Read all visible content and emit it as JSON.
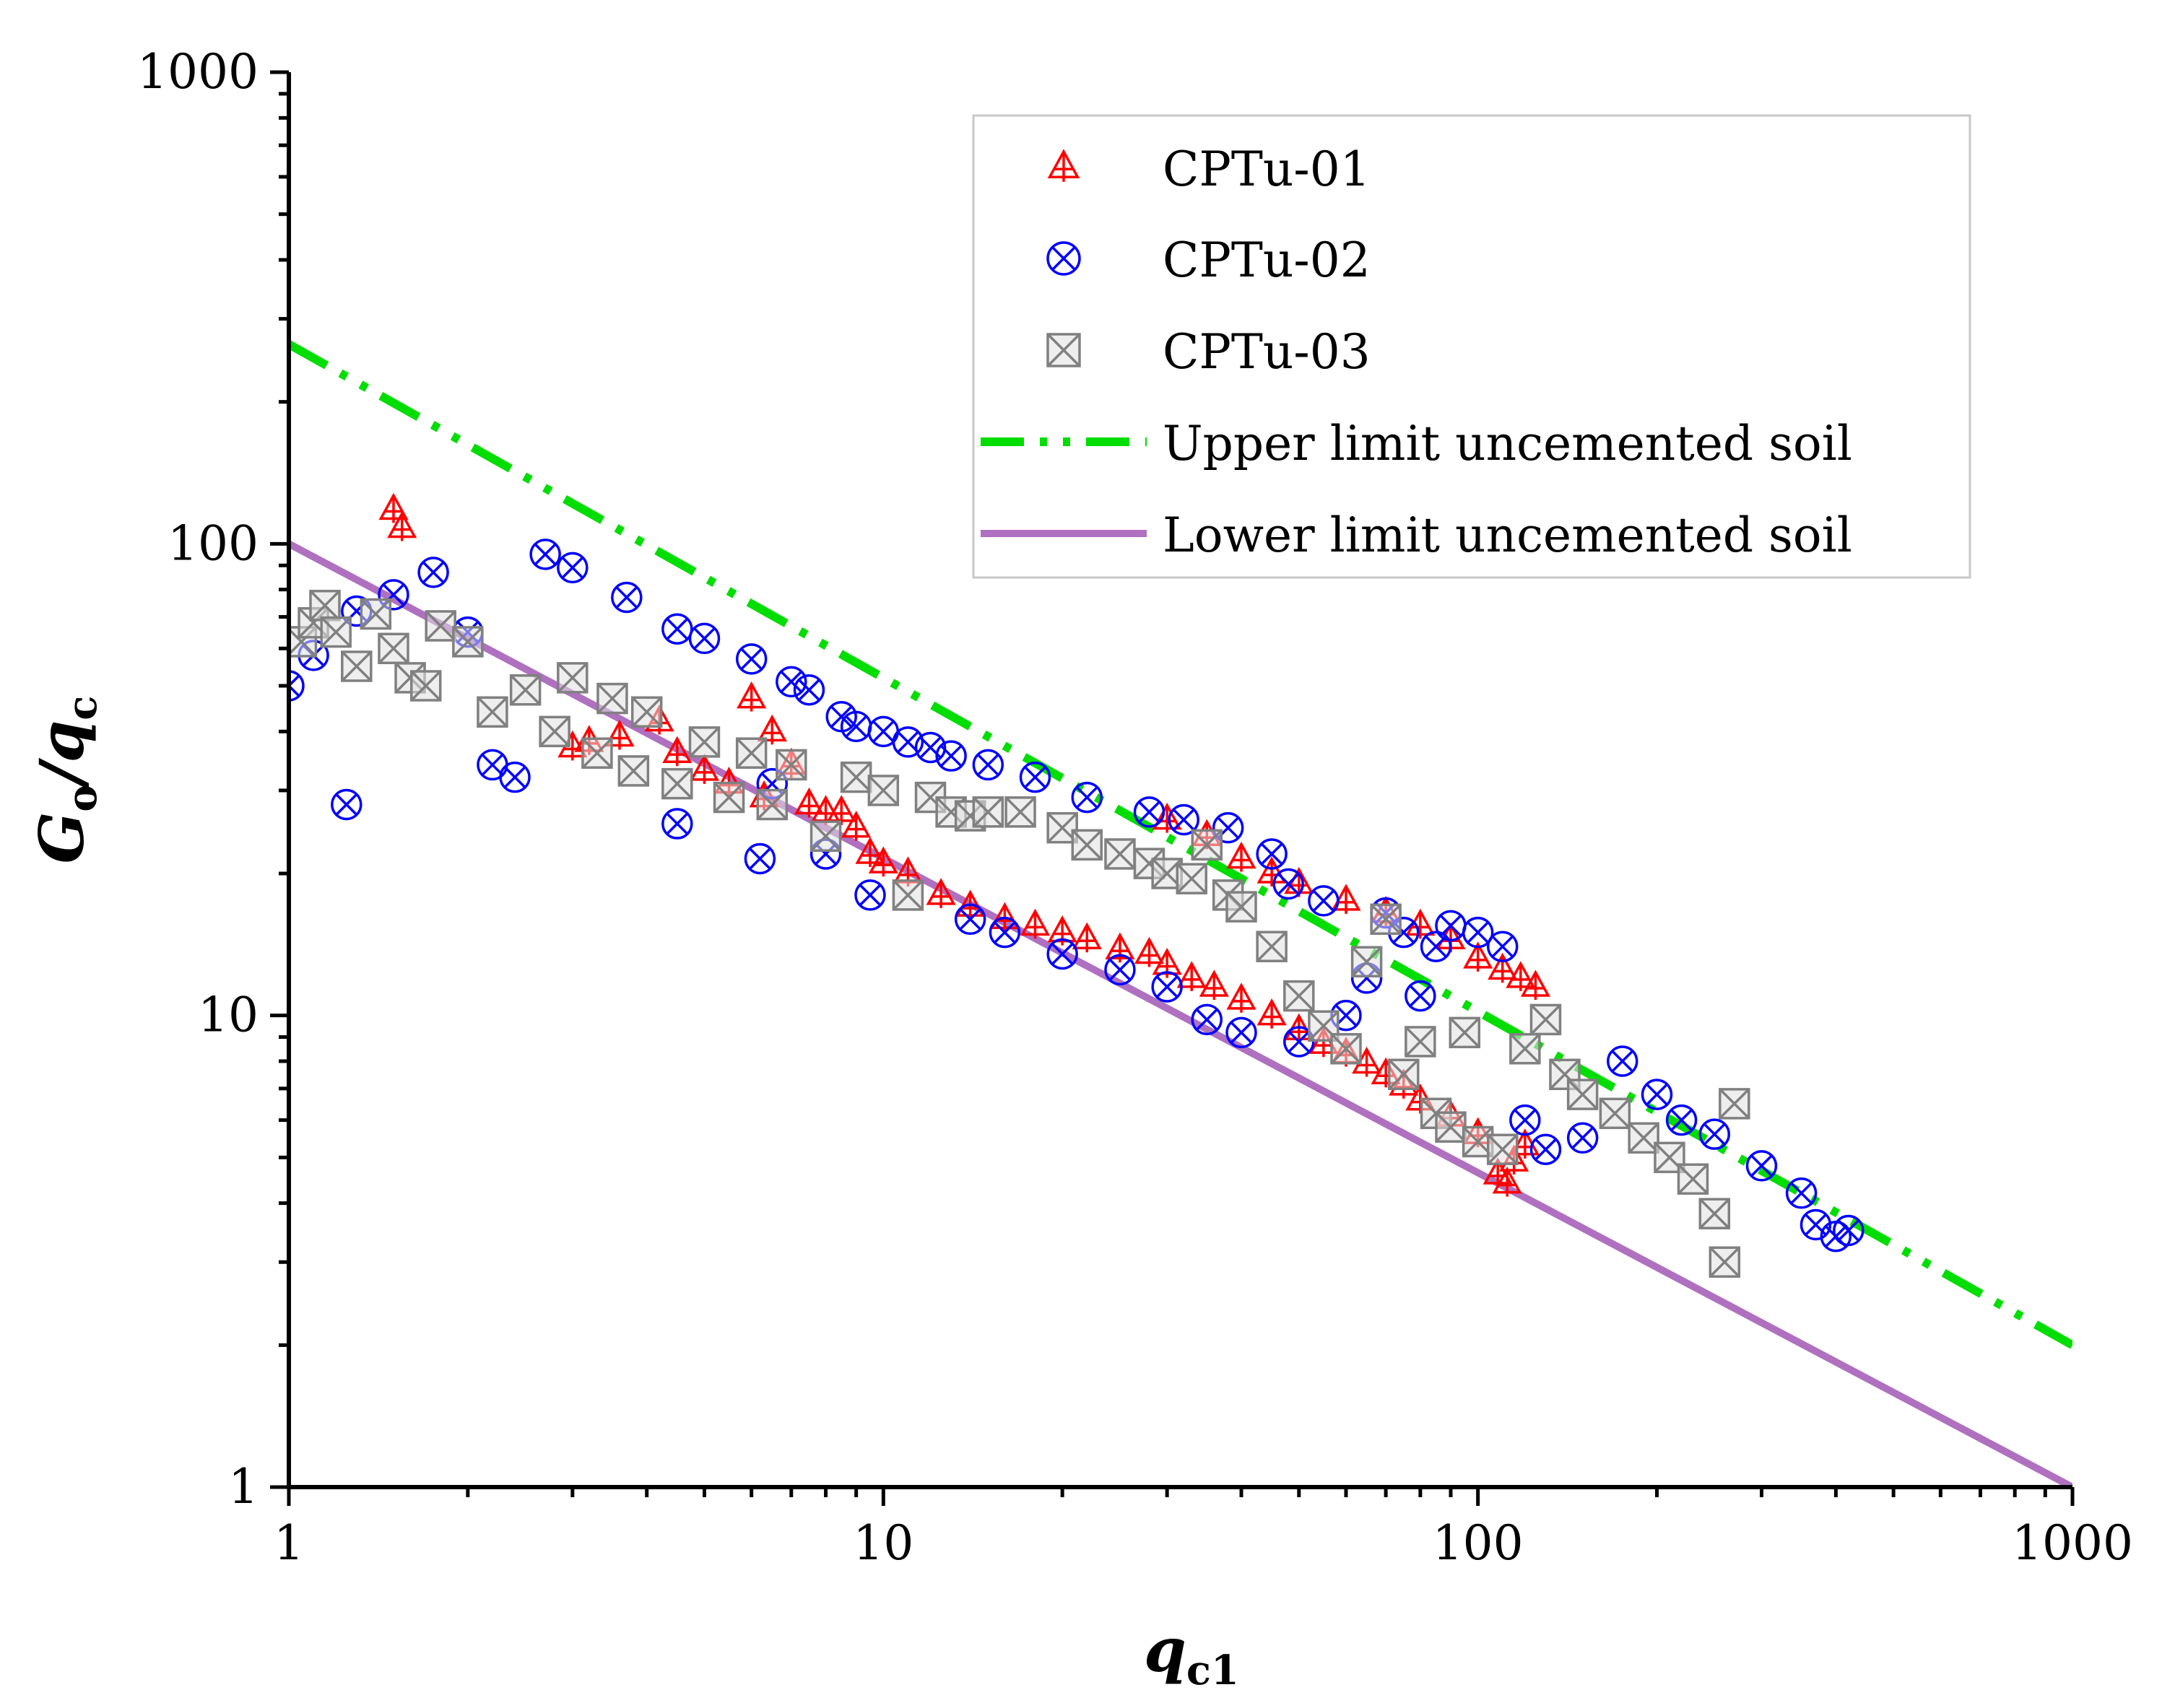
{
  "chart_data": {
    "type": "scatter",
    "x_scale": "log",
    "y_scale": "log",
    "xlim": [
      1,
      1000
    ],
    "ylim": [
      1,
      1000
    ],
    "x_ticks": [
      "1",
      "10",
      "100",
      "1000"
    ],
    "y_ticks": [
      "1",
      "10",
      "100",
      "1000"
    ],
    "xlabel": {
      "main": "q",
      "sub": "c1"
    },
    "ylabel": {
      "main": "G",
      "sub1": "o",
      "mid": "/q",
      "sub2": "c"
    },
    "grid": false,
    "legend_position": "top-right",
    "series": [
      {
        "name": "CPTu-01",
        "marker": "triangle-plus",
        "color": "#ff0000",
        "points": [
          [
            1.5,
            118
          ],
          [
            1.55,
            108
          ],
          [
            3.0,
            37
          ],
          [
            3.2,
            38
          ],
          [
            3.6,
            39
          ],
          [
            4.2,
            42
          ],
          [
            4.5,
            36
          ],
          [
            5.0,
            33
          ],
          [
            5.5,
            31
          ],
          [
            6.0,
            47
          ],
          [
            6.3,
            29
          ],
          [
            6.5,
            40
          ],
          [
            7.0,
            34
          ],
          [
            7.5,
            28
          ],
          [
            8.0,
            27
          ],
          [
            8.5,
            27
          ],
          [
            9.0,
            25
          ],
          [
            9.5,
            22
          ],
          [
            10.0,
            21
          ],
          [
            11.0,
            20
          ],
          [
            12.5,
            18
          ],
          [
            14.0,
            17
          ],
          [
            16.0,
            16
          ],
          [
            18.0,
            15.5
          ],
          [
            20.0,
            15
          ],
          [
            22.0,
            14.5
          ],
          [
            25.0,
            13.8
          ],
          [
            28.0,
            13.5
          ],
          [
            30.0,
            12.8
          ],
          [
            33.0,
            12.0
          ],
          [
            36.0,
            11.5
          ],
          [
            40.0,
            10.8
          ],
          [
            45.0,
            10.0
          ],
          [
            50.0,
            9.3
          ],
          [
            55.0,
            8.7
          ],
          [
            60.0,
            8.3
          ],
          [
            65.0,
            7.9
          ],
          [
            70.0,
            7.5
          ],
          [
            75.0,
            7.1
          ],
          [
            80.0,
            6.6
          ],
          [
            90.0,
            6.1
          ],
          [
            100.0,
            5.6
          ],
          [
            108.0,
            4.6
          ],
          [
            112.0,
            4.4
          ],
          [
            115.0,
            4.9
          ],
          [
            120.0,
            5.3
          ],
          [
            125.0,
            11.5
          ],
          [
            118.0,
            12.0
          ],
          [
            110.0,
            12.5
          ],
          [
            100.0,
            13.2
          ],
          [
            90.0,
            14.5
          ],
          [
            80.0,
            15.5
          ],
          [
            70.0,
            16.5
          ],
          [
            60.0,
            17.5
          ],
          [
            50.0,
            19.0
          ],
          [
            45.0,
            20.0
          ],
          [
            40.0,
            21.5
          ],
          [
            35.0,
            24.0
          ],
          [
            30.0,
            26.0
          ]
        ]
      },
      {
        "name": "CPTu-02",
        "marker": "circle-x",
        "color": "#0000ff",
        "points": [
          [
            1.0,
            50
          ],
          [
            1.1,
            58
          ],
          [
            1.25,
            28
          ],
          [
            1.3,
            72
          ],
          [
            1.5,
            78
          ],
          [
            1.75,
            87
          ],
          [
            2.0,
            65
          ],
          [
            2.2,
            34
          ],
          [
            2.4,
            32
          ],
          [
            2.7,
            95
          ],
          [
            3.0,
            89
          ],
          [
            3.7,
            77
          ],
          [
            4.5,
            25.5
          ],
          [
            4.5,
            66
          ],
          [
            5.0,
            63
          ],
          [
            6.0,
            57
          ],
          [
            6.2,
            21.5
          ],
          [
            6.5,
            31
          ],
          [
            7.0,
            51
          ],
          [
            7.5,
            49
          ],
          [
            8.0,
            22
          ],
          [
            8.5,
            43
          ],
          [
            9.0,
            41
          ],
          [
            9.5,
            18
          ],
          [
            10.0,
            40
          ],
          [
            11.0,
            38
          ],
          [
            12.0,
            37
          ],
          [
            13.0,
            35.5
          ],
          [
            14.0,
            16
          ],
          [
            15.0,
            34
          ],
          [
            16.0,
            15
          ],
          [
            18.0,
            32
          ],
          [
            20.0,
            13.5
          ],
          [
            22.0,
            29
          ],
          [
            25.0,
            12.5
          ],
          [
            28.0,
            27
          ],
          [
            30.0,
            11.5
          ],
          [
            32.0,
            26
          ],
          [
            35.0,
            9.8
          ],
          [
            38.0,
            25
          ],
          [
            40.0,
            9.2
          ],
          [
            45.0,
            22
          ],
          [
            48.0,
            19
          ],
          [
            50.0,
            8.8
          ],
          [
            55.0,
            17.5
          ],
          [
            60.0,
            10
          ],
          [
            65.0,
            12
          ],
          [
            70.0,
            16.5
          ],
          [
            75.0,
            15
          ],
          [
            80.0,
            11
          ],
          [
            85.0,
            14
          ],
          [
            90.0,
            15.5
          ],
          [
            100.0,
            15
          ],
          [
            110.0,
            14
          ],
          [
            120.0,
            6
          ],
          [
            130.0,
            5.2
          ],
          [
            150.0,
            5.5
          ],
          [
            175.0,
            8
          ],
          [
            200.0,
            6.8
          ],
          [
            220.0,
            6
          ],
          [
            250.0,
            5.6
          ],
          [
            300.0,
            4.8
          ],
          [
            350.0,
            4.2
          ],
          [
            370.0,
            3.6
          ],
          [
            400.0,
            3.4
          ],
          [
            420.0,
            3.5
          ]
        ]
      },
      {
        "name": "CPTu-03",
        "marker": "square-x",
        "color": "#808080",
        "points": [
          [
            1.05,
            62
          ],
          [
            1.1,
            68
          ],
          [
            1.15,
            74
          ],
          [
            1.2,
            65
          ],
          [
            1.3,
            55
          ],
          [
            1.4,
            71
          ],
          [
            1.5,
            60
          ],
          [
            1.6,
            52
          ],
          [
            1.7,
            50
          ],
          [
            1.8,
            67
          ],
          [
            2.0,
            62
          ],
          [
            2.2,
            44
          ],
          [
            2.5,
            49
          ],
          [
            2.8,
            40
          ],
          [
            3.0,
            52
          ],
          [
            3.3,
            36
          ],
          [
            3.5,
            47
          ],
          [
            3.8,
            33
          ],
          [
            4.0,
            44
          ],
          [
            4.5,
            31
          ],
          [
            5.0,
            38
          ],
          [
            5.5,
            29
          ],
          [
            6.0,
            36
          ],
          [
            6.5,
            28
          ],
          [
            7.0,
            34
          ],
          [
            8.0,
            24
          ],
          [
            9.0,
            32
          ],
          [
            10.0,
            30
          ],
          [
            11.0,
            18
          ],
          [
            12.0,
            29
          ],
          [
            13.0,
            27
          ],
          [
            14.0,
            26.5
          ],
          [
            15.0,
            27
          ],
          [
            17.0,
            27
          ],
          [
            20.0,
            25
          ],
          [
            22.0,
            23
          ],
          [
            25.0,
            22
          ],
          [
            28.0,
            21
          ],
          [
            30.0,
            20
          ],
          [
            33.0,
            19.5
          ],
          [
            35.0,
            23
          ],
          [
            38.0,
            18
          ],
          [
            40.0,
            17
          ],
          [
            45.0,
            14
          ],
          [
            50.0,
            11
          ],
          [
            55.0,
            9.5
          ],
          [
            60.0,
            8.5
          ],
          [
            65.0,
            13
          ],
          [
            70.0,
            16
          ],
          [
            75.0,
            7.5
          ],
          [
            80.0,
            8.8
          ],
          [
            85.0,
            6.2
          ],
          [
            90.0,
            5.8
          ],
          [
            95.0,
            9.2
          ],
          [
            100.0,
            5.4
          ],
          [
            110.0,
            5.2
          ],
          [
            120.0,
            8.5
          ],
          [
            130.0,
            9.8
          ],
          [
            140.0,
            7.5
          ],
          [
            150.0,
            6.8
          ],
          [
            170.0,
            6.2
          ],
          [
            190.0,
            5.5
          ],
          [
            210.0,
            5
          ],
          [
            230.0,
            4.5
          ],
          [
            250.0,
            3.8
          ],
          [
            260.0,
            3
          ],
          [
            270.0,
            6.5
          ]
        ]
      },
      {
        "name": "Upper limit uncemented soil",
        "type": "line",
        "style": "dash-dot-dot",
        "color": "#00dd00",
        "points": [
          [
            1,
            265
          ],
          [
            1000,
            2
          ]
        ]
      },
      {
        "name": "Lower limit uncemented soil",
        "type": "line",
        "style": "solid",
        "color": "#b070c0",
        "points": [
          [
            1,
            100
          ],
          [
            1000,
            1
          ]
        ]
      }
    ]
  }
}
